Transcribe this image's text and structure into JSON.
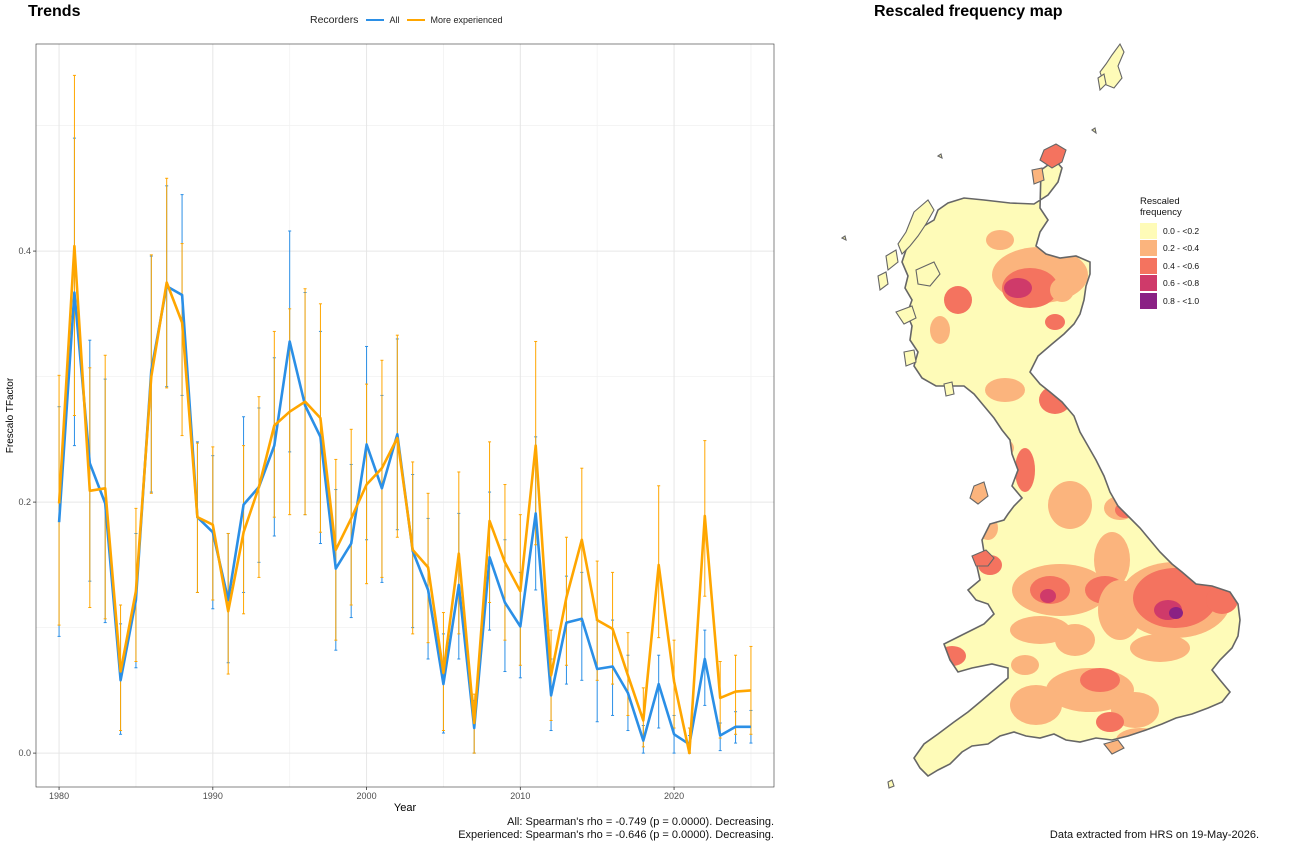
{
  "trends": {
    "title": "Trends"
  },
  "legend": {
    "title": "Recorders",
    "items": [
      {
        "label": "All",
        "color": "#2b8fe6"
      },
      {
        "label": "More experienced",
        "color": "#ffa600"
      }
    ]
  },
  "chart_data": {
    "type": "line",
    "xlabel": "Year",
    "ylabel": "Frescalo TFactor",
    "xlim": [
      1978.5,
      2026.5
    ],
    "ylim": [
      -0.027,
      0.565
    ],
    "xticks": [
      1980,
      1990,
      2000,
      2010,
      2020
    ],
    "yticks": [
      0.0,
      0.2,
      0.4
    ],
    "ytick_labels": [
      "0.0",
      "0.2",
      "0.4"
    ],
    "grid": true,
    "legend_position": "top",
    "x": [
      1980,
      1981,
      1982,
      1983,
      1984,
      1985,
      1986,
      1987,
      1988,
      1989,
      1990,
      1991,
      1992,
      1993,
      1994,
      1995,
      1996,
      1997,
      1998,
      1999,
      2000,
      2001,
      2002,
      2003,
      2004,
      2005,
      2006,
      2007,
      2008,
      2009,
      2010,
      2011,
      2012,
      2013,
      2014,
      2015,
      2016,
      2017,
      2018,
      2019,
      2020,
      2021,
      2022,
      2023,
      2024,
      2025
    ],
    "series": [
      {
        "name": "All",
        "color": "#2b8fe6",
        "values": [
          0.184,
          0.367,
          0.231,
          0.199,
          0.058,
          0.122,
          0.305,
          0.372,
          0.365,
          0.188,
          0.176,
          0.122,
          0.198,
          0.212,
          0.245,
          0.328,
          0.277,
          0.252,
          0.147,
          0.167,
          0.246,
          0.211,
          0.254,
          0.161,
          0.13,
          0.055,
          0.134,
          0.02,
          0.156,
          0.12,
          0.101,
          0.191,
          0.046,
          0.104,
          0.107,
          0.067,
          0.069,
          0.048,
          0.01,
          0.055,
          0.015,
          0.007,
          0.075,
          0.014,
          0.021,
          0.021
        ],
        "lower": [
          0.093,
          0.245,
          0.137,
          0.104,
          0.015,
          0.068,
          0.208,
          0.292,
          0.285,
          0.128,
          0.115,
          0.072,
          0.128,
          0.152,
          0.173,
          0.24,
          0.19,
          0.167,
          0.082,
          0.108,
          0.17,
          0.136,
          0.178,
          0.1,
          0.075,
          0.016,
          0.075,
          0.0,
          0.098,
          0.065,
          0.06,
          0.13,
          0.018,
          0.055,
          0.058,
          0.025,
          0.03,
          0.018,
          0.0,
          0.02,
          0.0,
          0.0,
          0.038,
          0.002,
          0.008,
          0.008
        ],
        "upper": [
          0.276,
          0.49,
          0.329,
          0.298,
          0.103,
          0.175,
          0.396,
          0.452,
          0.445,
          0.248,
          0.237,
          0.175,
          0.268,
          0.275,
          0.315,
          0.416,
          0.367,
          0.336,
          0.21,
          0.23,
          0.324,
          0.285,
          0.33,
          0.222,
          0.187,
          0.095,
          0.191,
          0.042,
          0.208,
          0.17,
          0.144,
          0.252,
          0.075,
          0.141,
          0.144,
          0.106,
          0.106,
          0.078,
          0.022,
          0.078,
          0.03,
          0.014,
          0.098,
          0.024,
          0.033,
          0.034
        ]
      },
      {
        "name": "More experienced",
        "color": "#ffa600",
        "values": [
          0.199,
          0.404,
          0.209,
          0.211,
          0.065,
          0.129,
          0.3,
          0.375,
          0.343,
          0.188,
          0.182,
          0.113,
          0.176,
          0.212,
          0.261,
          0.272,
          0.28,
          0.267,
          0.162,
          0.187,
          0.214,
          0.227,
          0.251,
          0.162,
          0.148,
          0.064,
          0.159,
          0.024,
          0.185,
          0.152,
          0.129,
          0.245,
          0.062,
          0.124,
          0.17,
          0.106,
          0.099,
          0.062,
          0.026,
          0.15,
          0.057,
          0.0,
          0.189,
          0.044,
          0.049,
          0.05
        ],
        "lower": [
          0.102,
          0.269,
          0.116,
          0.107,
          0.018,
          0.073,
          0.207,
          0.291,
          0.253,
          0.128,
          0.122,
          0.063,
          0.111,
          0.14,
          0.188,
          0.19,
          0.19,
          0.176,
          0.09,
          0.118,
          0.135,
          0.14,
          0.172,
          0.095,
          0.088,
          0.018,
          0.095,
          0.0,
          0.12,
          0.09,
          0.07,
          0.166,
          0.026,
          0.07,
          0.105,
          0.058,
          0.055,
          0.03,
          0.005,
          0.092,
          0.02,
          0.0,
          0.125,
          0.012,
          0.015,
          0.015
        ],
        "upper": [
          0.301,
          0.54,
          0.307,
          0.317,
          0.118,
          0.195,
          0.397,
          0.458,
          0.406,
          0.247,
          0.244,
          0.175,
          0.245,
          0.284,
          0.336,
          0.354,
          0.37,
          0.358,
          0.234,
          0.258,
          0.294,
          0.313,
          0.333,
          0.232,
          0.207,
          0.112,
          0.224,
          0.047,
          0.248,
          0.214,
          0.19,
          0.328,
          0.098,
          0.172,
          0.227,
          0.153,
          0.144,
          0.096,
          0.052,
          0.213,
          0.09,
          0.02,
          0.249,
          0.073,
          0.078,
          0.085
        ]
      }
    ]
  },
  "stats": {
    "all": "All: Spearman's rho = -0.749 (p = 0.0000). Decreasing.",
    "experienced": "Experienced: Spearman's rho = -0.646 (p = 0.0000). Decreasing."
  },
  "map": {
    "title": "Rescaled frequency map",
    "legend_title_line1": "Rescaled",
    "legend_title_line2": "frequency",
    "bins": [
      {
        "label": "0.0 - <0.2",
        "color": "#fefbb8"
      },
      {
        "label": "0.2 - <0.4",
        "color": "#fbb47d"
      },
      {
        "label": "0.4 - <0.6",
        "color": "#f4735f"
      },
      {
        "label": "0.6 - <0.8",
        "color": "#cf3a6a"
      },
      {
        "label": "0.8 - <1.0",
        "color": "#8a2184"
      }
    ],
    "outline_color": "#666666"
  },
  "footer": {
    "data_note": "Data extracted from HRS on 19-May-2026."
  }
}
